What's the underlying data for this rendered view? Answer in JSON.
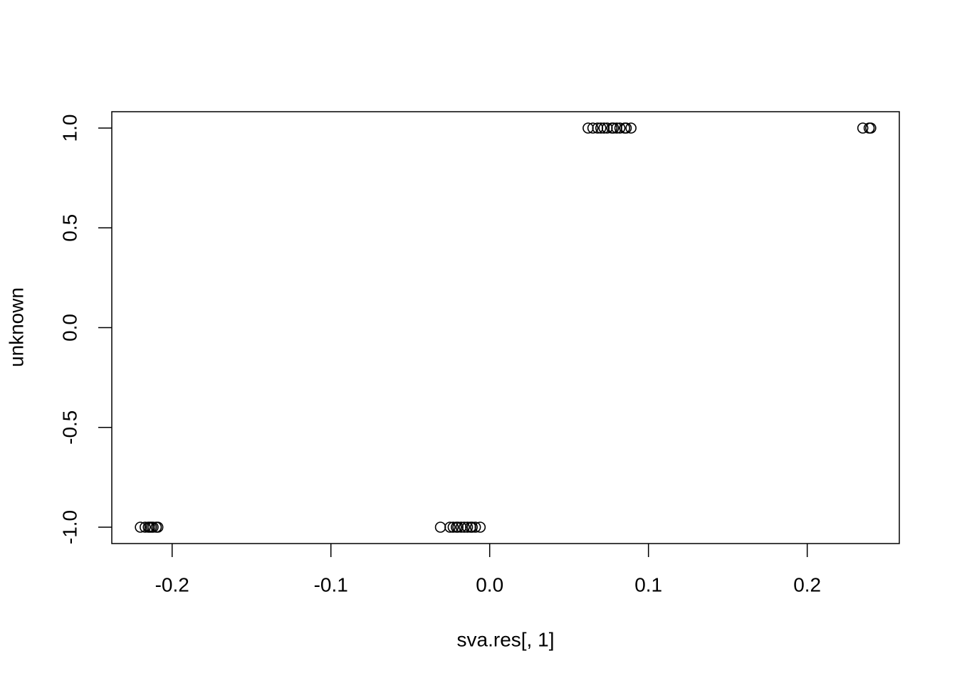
{
  "chart_data": {
    "type": "scatter",
    "x_label": "sva.res[, 1]",
    "y_label": "unknown",
    "x": [
      -0.22,
      -0.217,
      -0.215,
      -0.214,
      -0.213,
      -0.212,
      -0.21,
      -0.209,
      -0.031,
      -0.025,
      -0.023,
      -0.021,
      -0.02,
      -0.018,
      -0.016,
      -0.014,
      -0.012,
      -0.011,
      -0.009,
      -0.006,
      0.062,
      0.065,
      0.068,
      0.07,
      0.072,
      0.074,
      0.077,
      0.078,
      0.08,
      0.082,
      0.085,
      0.086,
      0.089,
      0.235,
      0.239,
      0.24
    ],
    "y": [
      -1,
      -1,
      -1,
      -1,
      -1,
      -1,
      -1,
      -1,
      -1,
      -1,
      -1,
      -1,
      -1,
      -1,
      -1,
      -1,
      -1,
      -1,
      -1,
      -1,
      1,
      1,
      1,
      1,
      1,
      1,
      1,
      1,
      1,
      1,
      1,
      1,
      1,
      1,
      1,
      1
    ],
    "color": "#000000",
    "xlim": [
      -0.238,
      0.258
    ],
    "ylim": [
      -1.082,
      1.082
    ],
    "xticks": [
      -0.2,
      -0.1,
      {
        "value": 0,
        "label": "0.0"
      },
      0.1,
      0.2
    ],
    "yticks": [
      {
        "value": -1,
        "label": "-1.0"
      },
      -0.5,
      {
        "value": 0,
        "label": "0.0"
      },
      0.5,
      {
        "value": 1,
        "label": "1.0"
      }
    ]
  }
}
